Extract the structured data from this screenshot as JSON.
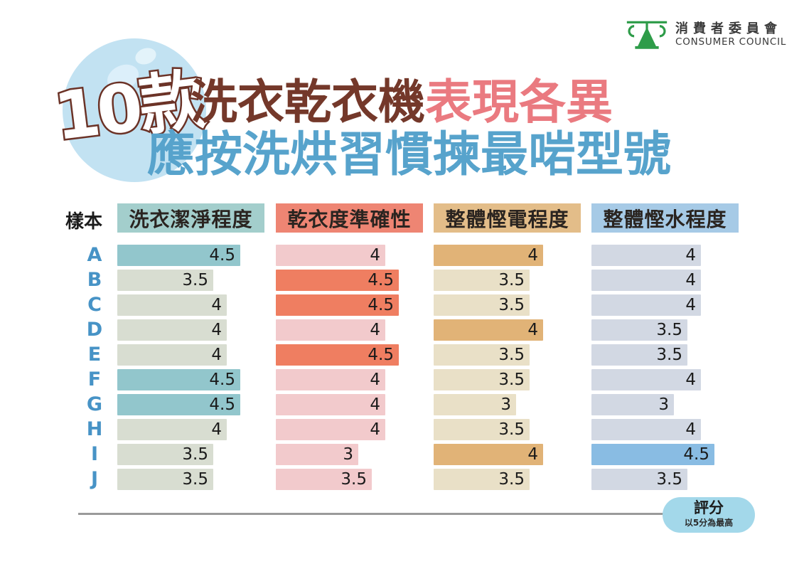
{
  "logo": {
    "org_zh": "消費者委員會",
    "org_en": "CONSUMER COUNCIL",
    "color": "#2e9c49"
  },
  "title": {
    "badge": "10款",
    "line1_brown": "洗衣乾衣機",
    "line1_pink": "表現各異",
    "line2": "應按洗烘習慣揀最啱型號",
    "brown_color": "#74382a",
    "pink_color": "#ea7a80",
    "blue_color": "#57a3cc"
  },
  "table": {
    "sample_header": "樣本",
    "columns": [
      {
        "label": "洗衣潔淨程度",
        "header_color": "#a3cecc",
        "bar_color": "#92c6cc",
        "pale_color": "#d8ddd1"
      },
      {
        "label": "乾衣度準確性",
        "header_color": "#ee8573",
        "bar_color": "#ef7e61",
        "pale_color": "#f2cacc"
      },
      {
        "label": "整體慳電程度",
        "header_color": "#e3bd89",
        "bar_color": "#e1b377",
        "pale_color": "#e9e0c7"
      },
      {
        "label": "整體慳水程度",
        "header_color": "#a6cae6",
        "bar_color": "#89bce3",
        "pale_color": "#d2d8e3"
      }
    ],
    "rows": [
      {
        "sample": "A",
        "values": [
          4.5,
          4,
          4,
          4
        ]
      },
      {
        "sample": "B",
        "values": [
          3.5,
          4.5,
          3.5,
          4
        ]
      },
      {
        "sample": "C",
        "values": [
          4,
          4.5,
          3.5,
          4
        ]
      },
      {
        "sample": "D",
        "values": [
          4,
          4,
          4,
          3.5
        ]
      },
      {
        "sample": "E",
        "values": [
          4,
          4.5,
          3.5,
          3.5
        ]
      },
      {
        "sample": "F",
        "values": [
          4.5,
          4,
          3.5,
          4
        ]
      },
      {
        "sample": "G",
        "values": [
          4.5,
          4,
          3,
          3
        ]
      },
      {
        "sample": "H",
        "values": [
          4,
          4,
          3.5,
          4
        ]
      },
      {
        "sample": "I",
        "values": [
          3.5,
          3,
          4,
          4.5
        ]
      },
      {
        "sample": "J",
        "values": [
          3.5,
          3.5,
          3.5,
          3.5
        ]
      }
    ]
  },
  "legend": {
    "title": "評分",
    "subtitle": "以5分為最高"
  },
  "chart_data": {
    "type": "bar",
    "orientation": "horizontal",
    "title": "10款 洗衣乾衣機表現各異 應按洗烘習慣揀最啱型號",
    "categories": [
      "A",
      "B",
      "C",
      "D",
      "E",
      "F",
      "G",
      "H",
      "I",
      "J"
    ],
    "series": [
      {
        "name": "洗衣潔淨程度",
        "values": [
          4.5,
          3.5,
          4,
          4,
          4,
          4.5,
          4.5,
          4,
          3.5,
          3.5
        ]
      },
      {
        "name": "乾衣度準確性",
        "values": [
          4,
          4.5,
          4.5,
          4,
          4.5,
          4,
          4,
          4,
          3,
          3.5
        ]
      },
      {
        "name": "整體慳電程度",
        "values": [
          4,
          3.5,
          3.5,
          4,
          3.5,
          3.5,
          3,
          3.5,
          4,
          3.5
        ]
      },
      {
        "name": "整體慳水程度",
        "values": [
          4,
          4,
          4,
          3.5,
          3.5,
          4,
          3,
          4,
          4.5,
          3.5
        ]
      }
    ],
    "value_range": [
      0,
      5
    ],
    "value_labels_on_bars": true,
    "highlight_rule": "max value per series shown in saturated color",
    "note": "評分 以5分為最高"
  }
}
